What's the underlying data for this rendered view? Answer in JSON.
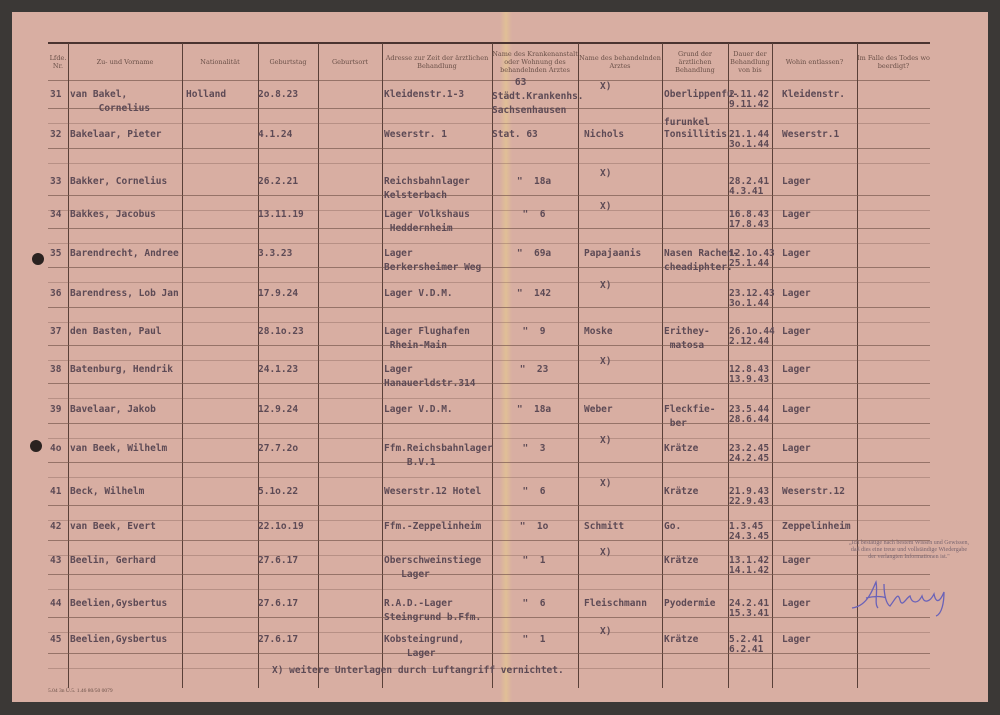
{
  "headers": [
    "Lfde. Nr.",
    "Zu- und Vorname",
    "Nationalität",
    "Geburtstag",
    "Geburtsort",
    "Adresse zur Zeit der ärztlichen Behandlung",
    "Name des Krankenanstalt oder Wohnung des behandelnden Arztes",
    "Name des behandelnden Arztes",
    "Grund der ärztlichen Behandlung",
    "Dauer der Behandlung von bis",
    "Wohin entlassen?",
    "Im Falle des Todes wo beerdigt?"
  ],
  "rows": [
    {
      "nr": "31",
      "name": "van Bakel,\n     Cornelius",
      "nat": "Holland",
      "born": "2o.8.23",
      "addr": "Kleidenstr.1-3",
      "hosp": "    63\nStädt.Krankenhs.\nSachsenhausen",
      "doctor": "X)",
      "reason": "Oberlippenfu-\n\nfurunkel",
      "from": "2.11.42",
      "to": "9.11.42",
      "to_where": "Kleidenstr."
    },
    {
      "nr": "32",
      "name": "Bakelaar, Pieter",
      "nat": "",
      "born": "4.1.24",
      "addr": "Weserstr. 1",
      "hosp": "Stat. 63",
      "doctor": "Nichols",
      "reason": "Tonsillitis",
      "from": "21.1.44",
      "to": "3o.1.44",
      "to_where": "Weserstr.1"
    },
    {
      "nr": "33",
      "name": "Bakker, Cornelius",
      "nat": "",
      "born": "26.2.21",
      "addr": "Reichsbahnlager\nKelsterbach",
      "hosp": "\"  18a",
      "doctor": "X)",
      "reason": "",
      "from": "28.2.41",
      "to": "4.3.41",
      "to_where": "Lager"
    },
    {
      "nr": "34",
      "name": "Bakkes, Jacobus",
      "nat": "",
      "born": "13.11.19",
      "addr": "Lager Volkshaus\n Heddernheim",
      "hosp": "\"  6",
      "doctor": "X)",
      "reason": "",
      "from": "16.8.43",
      "to": "17.8.43",
      "to_where": "Lager"
    },
    {
      "nr": "35",
      "name": "Barendrecht, Andree",
      "nat": "",
      "born": "3.3.23",
      "addr": "Lager\nBerkersheimer Weg",
      "hosp": "\"  69a",
      "doctor": "Papajaanis",
      "reason": "Nasen Rachen-\ncheadiphter.",
      "from": "12.1o.43",
      "to": "25.1.44",
      "to_where": "Lager"
    },
    {
      "nr": "36",
      "name": "Barendress, Lob Jan",
      "nat": "",
      "born": "17.9.24",
      "addr": "Lager V.D.M.",
      "hosp": "\"  142",
      "doctor": "X)",
      "reason": "",
      "from": "23.12.43",
      "to": "3o.1.44",
      "to_where": "Lager"
    },
    {
      "nr": "37",
      "name": "den Basten, Paul",
      "nat": "",
      "born": "28.1o.23",
      "addr": "Lager Flughafen\n Rhein-Main",
      "hosp": "\"  9",
      "doctor": "Moske",
      "reason": "Erithey-\n matosa",
      "from": "26.1o.44",
      "to": "2.12.44",
      "to_where": "Lager"
    },
    {
      "nr": "38",
      "name": "Batenburg, Hendrik",
      "nat": "",
      "born": "24.1.23",
      "addr": "Lager\nHanauerldstr.314",
      "hosp": "\"  23",
      "doctor": "X)",
      "reason": "",
      "from": "12.8.43",
      "to": "13.9.43",
      "to_where": "Lager"
    },
    {
      "nr": "39",
      "name": "Bavelaar, Jakob",
      "nat": "",
      "born": "12.9.24",
      "addr": "Lager V.D.M.",
      "hosp": "\"  18a",
      "doctor": "Weber",
      "reason": "Fleckfie-\n ber",
      "from": "23.5.44",
      "to": "28.6.44",
      "to_where": "Lager"
    },
    {
      "nr": "4o",
      "name": "van Beek, Wilhelm",
      "nat": "",
      "born": "27.7.2o",
      "addr": "Ffm.Reichsbahnlager\n    B.V.1",
      "hosp": "\"  3",
      "doctor": "X)",
      "reason": "Krätze",
      "from": "23.2.45",
      "to": "24.2.45",
      "to_where": "Lager"
    },
    {
      "nr": "41",
      "name": "Beck, Wilhelm",
      "nat": "",
      "born": "5.1o.22",
      "addr": "Weserstr.12 Hotel",
      "hosp": "\"  6",
      "doctor": "X)",
      "reason": "Krätze",
      "from": "21.9.43",
      "to": "22.9.43",
      "to_where": "Weserstr.12"
    },
    {
      "nr": "42",
      "name": "van Beek, Evert",
      "nat": "",
      "born": "22.1o.19",
      "addr": "Ffm.-Zeppelinheim",
      "hosp": "\"  1o",
      "doctor": "Schmitt",
      "reason": "Go.",
      "from": "1.3.45",
      "to": "24.3.45",
      "to_where": "Zeppelinheim"
    },
    {
      "nr": "43",
      "name": "Beelin, Gerhard",
      "nat": "",
      "born": "27.6.17",
      "addr": "Oberschweinstiege\n   Lager",
      "hosp": "\"  1",
      "doctor": "X)",
      "reason": "Krätze",
      "from": "13.1.42",
      "to": "14.1.42",
      "to_where": "Lager"
    },
    {
      "nr": "44",
      "name": "Beelien,Gysbertus",
      "nat": "",
      "born": "27.6.17",
      "addr": "R.A.D.-Lager\nSteingrund b.Ffm.",
      "hosp": "\"  6",
      "doctor": "Fleischmann",
      "reason": "Pyodermie",
      "from": "24.2.41",
      "to": "15.3.41",
      "to_where": "Lager"
    },
    {
      "nr": "45",
      "name": "Beelien,Gysbertus",
      "nat": "",
      "born": "27.6.17",
      "addr": "Kobsteingrund,\n    Lager",
      "hosp": "\"  1",
      "doctor": "X)",
      "reason": "Krätze",
      "from": "5.2.41",
      "to": "6.2.41",
      "to_where": "Lager"
    }
  ],
  "footnote": "X) weitere Unterlagen durch Luftangriff vernichtet.",
  "attestation": "„Ich bestätige nach bestem Wissen und Gewissen, daß dies eine treue und vollständige Wiedergabe der verlangten Informationen ist.\"",
  "signature": "Stevens",
  "form_code": "5.04 3n Ü.5. 1.46 80/50 0079"
}
